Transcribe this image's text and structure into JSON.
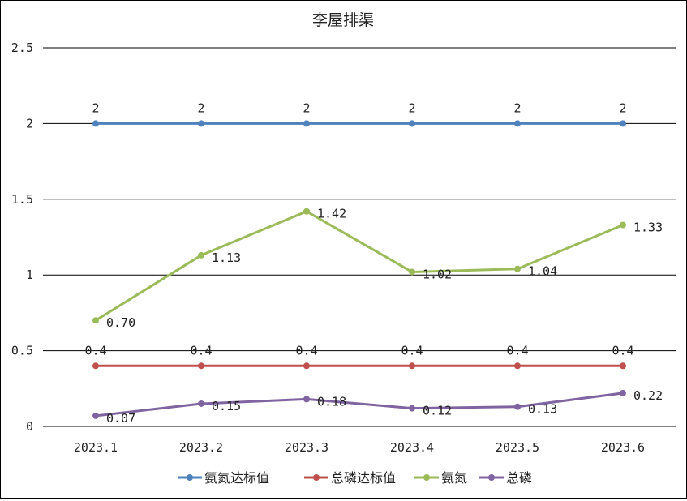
{
  "chart_data": {
    "type": "line",
    "title": "李屋排渠",
    "xlabel": "",
    "ylabel": "",
    "ylim": [
      0,
      2.5
    ],
    "yticks": [
      "0",
      "0.5",
      "1",
      "1.5",
      "2",
      "2.5"
    ],
    "grid": true,
    "legend_position": "bottom",
    "categories": [
      "2023.1",
      "2023.2",
      "2023.3",
      "2023.4",
      "2023.5",
      "2023.6"
    ],
    "series": [
      {
        "name": "氨氮达标值",
        "color": "#4F81BD",
        "values": [
          2,
          2,
          2,
          2,
          2,
          2
        ],
        "labels": [
          "2",
          "2",
          "2",
          "2",
          "2",
          "2"
        ]
      },
      {
        "name": "总磷达标值",
        "color": "#C0504D",
        "values": [
          0.4,
          0.4,
          0.4,
          0.4,
          0.4,
          0.4
        ],
        "labels": [
          "0.4",
          "0.4",
          "0.4",
          "0.4",
          "0.4",
          "0.4"
        ]
      },
      {
        "name": "氨氮",
        "color": "#9BBB59",
        "values": [
          0.7,
          1.13,
          1.42,
          1.02,
          1.04,
          1.33
        ],
        "labels": [
          "0.70",
          "1.13",
          "1.42",
          "1.02",
          "1.04",
          "1.33"
        ]
      },
      {
        "name": "总磷",
        "color": "#8064A2",
        "values": [
          0.07,
          0.15,
          0.18,
          0.12,
          0.13,
          0.22
        ],
        "labels": [
          "0.07",
          "0.15",
          "0.18",
          "0.12",
          "0.13",
          "0.22"
        ]
      }
    ]
  }
}
